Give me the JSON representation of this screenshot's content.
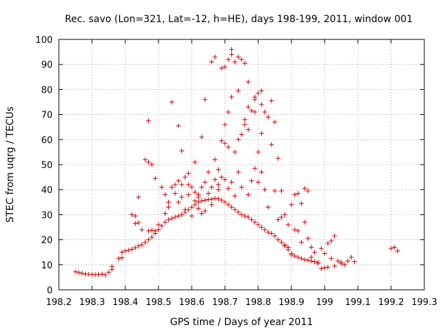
{
  "chart_data": {
    "type": "scatter",
    "title": "Rec. savo (Lon=321, Lat=-12, h=HE), days 198-199, 2011, window 001",
    "xlabel": "GPS time / Days of year 2011",
    "ylabel": "STEC from uqrg / TECUs",
    "xlim": [
      198.2,
      199.3
    ],
    "ylim": [
      0,
      100
    ],
    "xticks": [
      198.2,
      198.3,
      198.4,
      198.5,
      198.6,
      198.7,
      198.8,
      198.9,
      199,
      199.1,
      199.2,
      199.3
    ],
    "xtick_labels": [
      "198.2",
      "198.3",
      "198.4",
      "198.5",
      "198.6",
      "198.7",
      "198.8",
      "198.9",
      "199",
      "199.1",
      "199.2",
      "199.3"
    ],
    "yticks": [
      0,
      10,
      20,
      30,
      40,
      50,
      60,
      70,
      80,
      90,
      100
    ],
    "ytick_labels": [
      "0",
      "10",
      "20",
      "30",
      "40",
      "50",
      "60",
      "70",
      "80",
      "90",
      "100"
    ],
    "grid": true,
    "marker": "+",
    "color": "#cc0000",
    "series": [
      {
        "name": "STEC",
        "points": [
          [
            198.25,
            7.2
          ],
          [
            198.26,
            6.9
          ],
          [
            198.27,
            6.6
          ],
          [
            198.28,
            6.3
          ],
          [
            198.29,
            6.2
          ],
          [
            198.3,
            6.1
          ],
          [
            198.31,
            6.0
          ],
          [
            198.32,
            6.1
          ],
          [
            198.33,
            6.3
          ],
          [
            198.34,
            5.9
          ],
          [
            198.35,
            7.0
          ],
          [
            198.36,
            8.2
          ],
          [
            198.36,
            9.3
          ],
          [
            198.38,
            12.5
          ],
          [
            198.39,
            12.8
          ],
          [
            198.39,
            15.0
          ],
          [
            198.4,
            15.5
          ],
          [
            198.41,
            15.8
          ],
          [
            198.42,
            16.2
          ],
          [
            198.43,
            16.8
          ],
          [
            198.44,
            17.5
          ],
          [
            198.45,
            18.0
          ],
          [
            198.46,
            19.0
          ],
          [
            198.47,
            20.0
          ],
          [
            198.48,
            21.0
          ],
          [
            198.49,
            22.5
          ],
          [
            198.5,
            24.0
          ],
          [
            198.51,
            25.5
          ],
          [
            198.52,
            27.0
          ],
          [
            198.53,
            28.0
          ],
          [
            198.54,
            28.5
          ],
          [
            198.55,
            29.0
          ],
          [
            198.56,
            29.5
          ],
          [
            198.57,
            30.0
          ],
          [
            198.58,
            31.0
          ],
          [
            198.59,
            32.0
          ],
          [
            198.6,
            33.0
          ],
          [
            198.61,
            34.0
          ],
          [
            198.62,
            35.0
          ],
          [
            198.63,
            35.5
          ],
          [
            198.64,
            35.8
          ],
          [
            198.65,
            36.0
          ],
          [
            198.66,
            36.2
          ],
          [
            198.67,
            36.5
          ],
          [
            198.68,
            36.3
          ],
          [
            198.69,
            35.8
          ],
          [
            198.7,
            35.0
          ],
          [
            198.71,
            34.0
          ],
          [
            198.72,
            33.0
          ],
          [
            198.73,
            32.0
          ],
          [
            198.74,
            31.0
          ],
          [
            198.75,
            30.0
          ],
          [
            198.76,
            29.5
          ],
          [
            198.77,
            29.0
          ],
          [
            198.78,
            28.0
          ],
          [
            198.79,
            27.0
          ],
          [
            198.8,
            26.0
          ],
          [
            198.81,
            25.0
          ],
          [
            198.82,
            24.0
          ],
          [
            198.83,
            23.0
          ],
          [
            198.84,
            22.5
          ],
          [
            198.85,
            21.5
          ],
          [
            198.86,
            20.0
          ],
          [
            198.87,
            19.0
          ],
          [
            198.88,
            17.5
          ],
          [
            198.89,
            16.0
          ],
          [
            198.9,
            14.5
          ],
          [
            198.91,
            13.5
          ],
          [
            198.92,
            13.0
          ],
          [
            198.93,
            12.5
          ],
          [
            198.94,
            12.0
          ],
          [
            198.95,
            11.8
          ],
          [
            198.96,
            11.5
          ],
          [
            198.97,
            11.2
          ],
          [
            198.98,
            11.0
          ],
          [
            198.42,
            30.0
          ],
          [
            198.43,
            29.5
          ],
          [
            198.43,
            26.5
          ],
          [
            198.44,
            26.8
          ],
          [
            198.44,
            37.0
          ],
          [
            198.45,
            24.0
          ],
          [
            198.46,
            52.0
          ],
          [
            198.47,
            51.0
          ],
          [
            198.47,
            67.5
          ],
          [
            198.47,
            23.5
          ],
          [
            198.48,
            50.0
          ],
          [
            198.48,
            23.8
          ],
          [
            198.49,
            23.5
          ],
          [
            198.49,
            44.5
          ],
          [
            198.5,
            26.0
          ],
          [
            198.51,
            41.0
          ],
          [
            198.52,
            38.0
          ],
          [
            198.52,
            30.5
          ],
          [
            198.53,
            35.0
          ],
          [
            198.53,
            33.0
          ],
          [
            198.54,
            41.0
          ],
          [
            198.54,
            75.0
          ],
          [
            198.55,
            42.0
          ],
          [
            198.55,
            38.5
          ],
          [
            198.56,
            43.5
          ],
          [
            198.56,
            65.5
          ],
          [
            198.56,
            35.0
          ],
          [
            198.57,
            55.5
          ],
          [
            198.57,
            42.0
          ],
          [
            198.57,
            37.0
          ],
          [
            198.58,
            45.0
          ],
          [
            198.58,
            32.0
          ],
          [
            198.59,
            42.0
          ],
          [
            198.59,
            46.5
          ],
          [
            198.59,
            38.0
          ],
          [
            198.6,
            41.0
          ],
          [
            198.6,
            29.5
          ],
          [
            198.61,
            39.0
          ],
          [
            198.61,
            51.0
          ],
          [
            198.61,
            35.5
          ],
          [
            198.62,
            38.0
          ],
          [
            198.62,
            37.0
          ],
          [
            198.62,
            32.5
          ],
          [
            198.63,
            61.0
          ],
          [
            198.63,
            41.0
          ],
          [
            198.63,
            30.5
          ],
          [
            198.64,
            43.0
          ],
          [
            198.64,
            76.0
          ],
          [
            198.64,
            31.5
          ],
          [
            198.65,
            38.5
          ],
          [
            198.65,
            47.0
          ],
          [
            198.66,
            91.0
          ],
          [
            198.66,
            41.0
          ],
          [
            198.66,
            34.0
          ],
          [
            198.67,
            44.0
          ],
          [
            198.67,
            52.0
          ],
          [
            198.67,
            93.0
          ],
          [
            198.68,
            42.0
          ],
          [
            198.68,
            48.0
          ],
          [
            198.68,
            40.0
          ],
          [
            198.69,
            88.5
          ],
          [
            198.69,
            59.5
          ],
          [
            198.69,
            45.0
          ],
          [
            198.7,
            89.0
          ],
          [
            198.7,
            66.0
          ],
          [
            198.7,
            58.5
          ],
          [
            198.7,
            44.0
          ],
          [
            198.71,
            92.0
          ],
          [
            198.71,
            71.0
          ],
          [
            198.71,
            57.0
          ],
          [
            198.71,
            40.5
          ],
          [
            198.72,
            94.0
          ],
          [
            198.72,
            96.0
          ],
          [
            198.72,
            77.0
          ],
          [
            198.72,
            43.0
          ],
          [
            198.73,
            91.0
          ],
          [
            198.73,
            55.0
          ],
          [
            198.73,
            37.5
          ],
          [
            198.74,
            93.0
          ],
          [
            198.74,
            79.5
          ],
          [
            198.74,
            60.0
          ],
          [
            198.74,
            47.0
          ],
          [
            198.75,
            92.0
          ],
          [
            198.75,
            62.0
          ],
          [
            198.75,
            41.0
          ],
          [
            198.76,
            90.5
          ],
          [
            198.76,
            68.0
          ],
          [
            198.76,
            66.0
          ],
          [
            198.77,
            83.0
          ],
          [
            198.77,
            73.0
          ],
          [
            198.77,
            64.0
          ],
          [
            198.77,
            38.0
          ],
          [
            198.78,
            71.5
          ],
          [
            198.78,
            43.5
          ],
          [
            198.79,
            76.0
          ],
          [
            198.79,
            77.0
          ],
          [
            198.79,
            48.5
          ],
          [
            198.79,
            71.0
          ],
          [
            198.8,
            78.5
          ],
          [
            198.8,
            55.0
          ],
          [
            198.8,
            43.0
          ],
          [
            198.81,
            79.5
          ],
          [
            198.81,
            74.0
          ],
          [
            198.81,
            62.5
          ],
          [
            198.81,
            47.0
          ],
          [
            198.82,
            71.0
          ],
          [
            198.82,
            40.0
          ],
          [
            198.83,
            69.0
          ],
          [
            198.83,
            33.0
          ],
          [
            198.84,
            58.0
          ],
          [
            198.84,
            75.5
          ],
          [
            198.85,
            67.0
          ],
          [
            198.85,
            39.5
          ],
          [
            198.86,
            52.5
          ],
          [
            198.86,
            28.0
          ],
          [
            198.87,
            39.5
          ],
          [
            198.87,
            29.0
          ],
          [
            198.88,
            30.0
          ],
          [
            198.88,
            18.0
          ],
          [
            198.89,
            26.0
          ],
          [
            198.89,
            17.0
          ],
          [
            198.9,
            34.0
          ],
          [
            198.9,
            14.0
          ],
          [
            198.91,
            38.0
          ],
          [
            198.91,
            24.0
          ],
          [
            198.92,
            38.5
          ],
          [
            198.92,
            23.5
          ],
          [
            198.93,
            34.5
          ],
          [
            198.93,
            19.0
          ],
          [
            198.94,
            40.5
          ],
          [
            198.94,
            27.0
          ],
          [
            198.95,
            39.5
          ],
          [
            198.95,
            20.5
          ],
          [
            198.96,
            17.0
          ],
          [
            198.96,
            13.0
          ],
          [
            198.97,
            15.0
          ],
          [
            198.98,
            10.5
          ],
          [
            198.99,
            16.5
          ],
          [
            198.99,
            8.5
          ],
          [
            199.0,
            14.5
          ],
          [
            199.0,
            8.8
          ],
          [
            199.01,
            18.5
          ],
          [
            199.01,
            9.0
          ],
          [
            199.02,
            19.5
          ],
          [
            199.02,
            12.5
          ],
          [
            199.03,
            21.5
          ],
          [
            199.03,
            9.5
          ],
          [
            199.04,
            11.5
          ],
          [
            199.05,
            11.0
          ],
          [
            199.05,
            10.5
          ],
          [
            199.06,
            10.0
          ],
          [
            199.07,
            11.5
          ],
          [
            199.08,
            13.0
          ],
          [
            199.09,
            11.2
          ],
          [
            199.2,
            16.5
          ],
          [
            199.21,
            17.0
          ],
          [
            199.22,
            15.5
          ]
        ]
      }
    ]
  }
}
